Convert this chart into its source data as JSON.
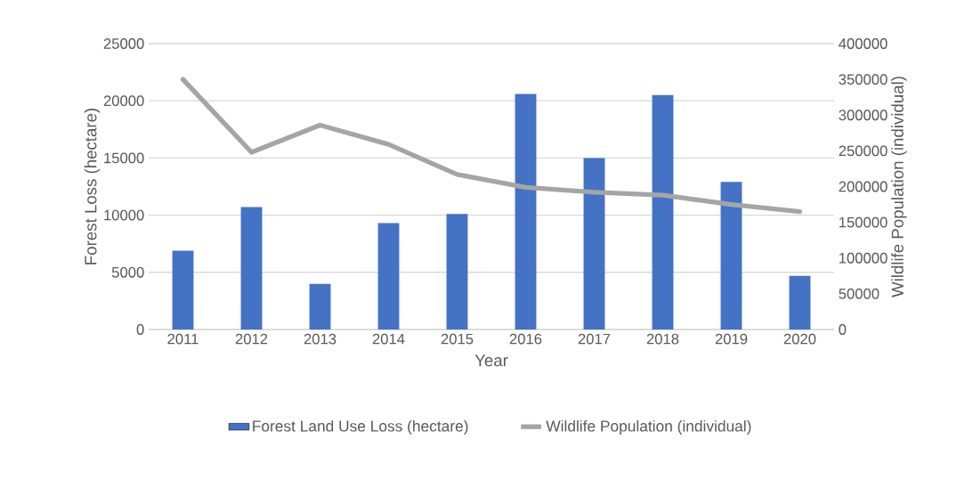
{
  "chart_data": {
    "type": "bar",
    "xlabel": "Year",
    "ylabel": "Forest Loss (hectare)",
    "y2label": "Wildlife Population (individual)",
    "categories": [
      "2011",
      "2012",
      "2013",
      "2014",
      "2015",
      "2016",
      "2017",
      "2018",
      "2019",
      "2020"
    ],
    "series": [
      {
        "name": "Forest Land Use Loss (hectare)",
        "color": "#4472c4",
        "values": [
          6900,
          10700,
          4000,
          9300,
          10100,
          20600,
          15000,
          20500,
          12900,
          4700
        ]
      },
      {
        "name": "Wildlife Population (individual)",
        "type": "line",
        "axis": "y2",
        "color": "#a5a5a5",
        "values": [
          350000,
          248000,
          286000,
          259000,
          217000,
          199000,
          192000,
          188000,
          175000,
          165000
        ]
      }
    ],
    "ylim": [
      0,
      25000
    ],
    "yticks": [
      0,
      5000,
      10000,
      15000,
      20000,
      25000
    ],
    "y2lim": [
      0,
      400000
    ],
    "y2ticks": [
      0,
      50000,
      100000,
      150000,
      200000,
      250000,
      300000,
      350000,
      400000
    ],
    "grid": "y",
    "legend": "bottom",
    "marker": "none",
    "line_style": "solid"
  }
}
